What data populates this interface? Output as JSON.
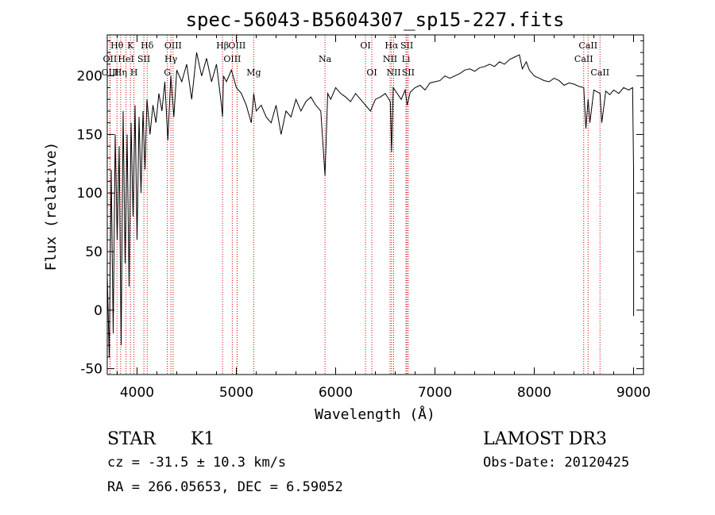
{
  "chart_data": {
    "type": "line",
    "title": "spec-56043-B5604307_sp15-227.fits",
    "xlabel": "Wavelength (Å)",
    "ylabel": "Flux (relative)",
    "xlim": [
      3700,
      9100
    ],
    "ylim": [
      -55,
      235
    ],
    "x_ticks": [
      4000,
      5000,
      6000,
      7000,
      8000,
      9000
    ],
    "y_ticks": [
      -50,
      0,
      50,
      100,
      150,
      200
    ],
    "grid": false,
    "series": [
      {
        "name": "",
        "x": [
          3700,
          3720,
          3740,
          3760,
          3780,
          3800,
          3820,
          3840,
          3860,
          3880,
          3900,
          3920,
          3940,
          3960,
          3980,
          4000,
          4020,
          4040,
          4060,
          4080,
          4100,
          4130,
          4160,
          4190,
          4220,
          4250,
          4280,
          4310,
          4340,
          4370,
          4400,
          4450,
          4500,
          4550,
          4600,
          4650,
          4700,
          4750,
          4800,
          4850,
          4861,
          4870,
          4900,
          4950,
          5000,
          5050,
          5100,
          5150,
          5175,
          5200,
          5250,
          5300,
          5350,
          5400,
          5450,
          5500,
          5550,
          5600,
          5650,
          5700,
          5750,
          5800,
          5850,
          5893,
          5920,
          5950,
          6000,
          6050,
          6100,
          6150,
          6200,
          6250,
          6300,
          6350,
          6400,
          6450,
          6500,
          6550,
          6563,
          6580,
          6620,
          6660,
          6700,
          6720,
          6750,
          6800,
          6850,
          6900,
          6950,
          7000,
          7050,
          7100,
          7150,
          7200,
          7250,
          7300,
          7350,
          7400,
          7450,
          7500,
          7550,
          7600,
          7650,
          7700,
          7750,
          7800,
          7850,
          7880,
          7920,
          7950,
          8000,
          8050,
          8100,
          8150,
          8200,
          8250,
          8300,
          8350,
          8400,
          8450,
          8498,
          8520,
          8542,
          8560,
          8600,
          8662,
          8680,
          8720,
          8760,
          8800,
          8850,
          8900,
          8950,
          8990,
          9000,
          9001
        ],
        "y": [
          30,
          -40,
          120,
          -20,
          150,
          60,
          140,
          -30,
          170,
          40,
          150,
          20,
          160,
          80,
          175,
          60,
          165,
          100,
          170,
          120,
          180,
          150,
          175,
          160,
          185,
          170,
          195,
          145,
          200,
          165,
          205,
          195,
          210,
          180,
          220,
          200,
          215,
          195,
          210,
          175,
          165,
          200,
          195,
          205,
          190,
          185,
          175,
          160,
          185,
          170,
          175,
          165,
          160,
          175,
          150,
          170,
          165,
          180,
          170,
          178,
          182,
          175,
          170,
          115,
          185,
          180,
          190,
          185,
          182,
          178,
          185,
          180,
          175,
          170,
          180,
          182,
          185,
          178,
          135,
          190,
          185,
          180,
          188,
          175,
          186,
          190,
          192,
          188,
          194,
          195,
          196,
          200,
          198,
          200,
          202,
          205,
          206,
          204,
          207,
          208,
          210,
          208,
          212,
          210,
          214,
          216,
          218,
          206,
          212,
          205,
          200,
          198,
          196,
          195,
          198,
          196,
          192,
          194,
          193,
          191,
          190,
          155,
          180,
          160,
          188,
          185,
          160,
          187,
          184,
          188,
          185,
          190,
          188,
          190,
          120,
          -5
        ]
      }
    ],
    "line_markers": [
      {
        "label": "Hθ",
        "x": 3798,
        "row": 0
      },
      {
        "label": "OII",
        "x": 3727,
        "row": 1
      },
      {
        "label": "OIII",
        "x": 3729,
        "row": 2
      },
      {
        "label": "K",
        "x": 3934,
        "row": 0
      },
      {
        "label": "HeI",
        "x": 3889,
        "row": 1
      },
      {
        "label": "Hη",
        "x": 3835,
        "row": 2
      },
      {
        "label": "SII",
        "x": 4069,
        "row": 1
      },
      {
        "label": "H",
        "x": 3969,
        "row": 2
      },
      {
        "label": "Hδ",
        "x": 4102,
        "row": 0
      },
      {
        "label": "OIII",
        "x": 4363,
        "row": 0
      },
      {
        "label": "Hγ",
        "x": 4341,
        "row": 1
      },
      {
        "label": "G",
        "x": 4305,
        "row": 2
      },
      {
        "label": "Hβ",
        "x": 4861,
        "row": 0
      },
      {
        "label": "OIII",
        "x": 5007,
        "row": 0
      },
      {
        "label": "OIII",
        "x": 4959,
        "row": 1
      },
      {
        "label": "Mg",
        "x": 5175,
        "row": 2
      },
      {
        "label": "Na",
        "x": 5893,
        "row": 1
      },
      {
        "label": "OI",
        "x": 6300,
        "row": 0
      },
      {
        "label": "OI",
        "x": 6364,
        "row": 2
      },
      {
        "label": "Hα",
        "x": 6563,
        "row": 0
      },
      {
        "label": "NII",
        "x": 6548,
        "row": 1
      },
      {
        "label": "NII",
        "x": 6584,
        "row": 2
      },
      {
        "label": "SII",
        "x": 6717,
        "row": 0
      },
      {
        "label": "Li",
        "x": 6708,
        "row": 1
      },
      {
        "label": "SII",
        "x": 6731,
        "row": 2
      },
      {
        "label": "CaII",
        "x": 8542,
        "row": 0
      },
      {
        "label": "CaII",
        "x": 8498,
        "row": 1
      },
      {
        "label": "CaII",
        "x": 8662,
        "row": 2
      }
    ]
  },
  "footer": {
    "class_label": "STAR",
    "subclass_label": "K1",
    "cz_text": "cz = -31.5 ± 10.3 km/s",
    "coords_text": "RA = 266.05653, DEC =   6.59052",
    "survey_label": "LAMOST DR3",
    "obs_date_text": "Obs-Date: 20120425"
  }
}
